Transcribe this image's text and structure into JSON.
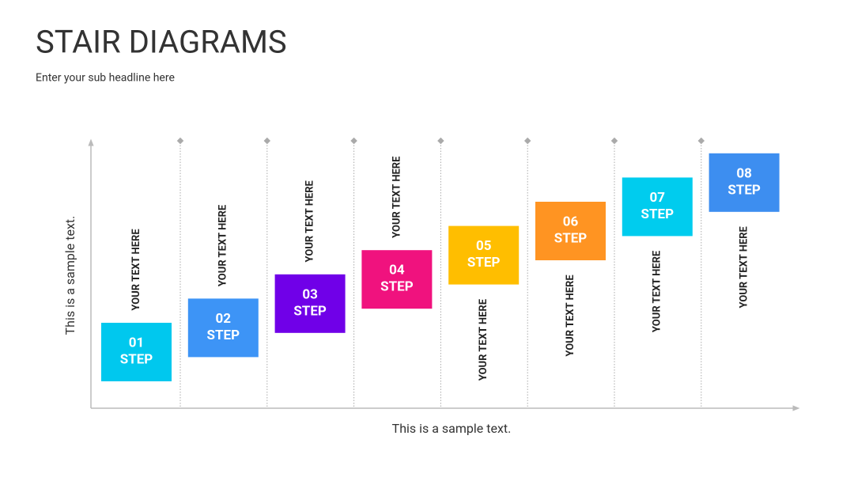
{
  "header": {
    "title": "STAIR DIAGRAMS",
    "subtitle": "Enter your sub headline here"
  },
  "axes": {
    "y_label": "This is a sample text.",
    "x_label": "This is a sample text."
  },
  "steps": [
    {
      "number": "01",
      "label": "STEP",
      "text": "YOUR TEXT HERE",
      "color": "#00c8ee"
    },
    {
      "number": "02",
      "label": "STEP",
      "text": "YOUR TEXT HERE",
      "color": "#3d94f6"
    },
    {
      "number": "03",
      "label": "STEP",
      "text": "YOUR TEXT HERE",
      "color": "#7000e8"
    },
    {
      "number": "04",
      "label": "STEP",
      "text": "YOUR TEXT HERE",
      "color": "#f0127e"
    },
    {
      "number": "05",
      "label": "STEP",
      "text": "YOUR TEXT HERE",
      "color": "#ffbe00"
    },
    {
      "number": "06",
      "label": "STEP",
      "text": "YOUR TEXT HERE",
      "color": "#ff9422"
    },
    {
      "number": "07",
      "label": "STEP",
      "text": "YOUR TEXT HERE",
      "color": "#00ccee"
    },
    {
      "number": "08",
      "label": "STEP",
      "text": "YOUR TEXT HERE",
      "color": "#3d8ef0"
    }
  ]
}
